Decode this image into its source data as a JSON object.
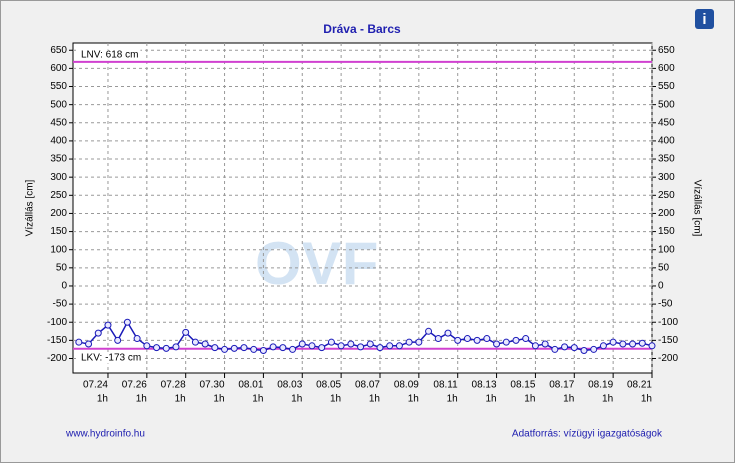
{
  "chart_data": {
    "type": "line",
    "title": "Dráva - Barcs",
    "ylabel": "Vízállás [cm]",
    "y2label": "Vízállás [cm]",
    "x": [
      -1.5,
      -1,
      -0.5,
      0,
      0.5,
      1,
      1.5,
      2,
      2.5,
      3,
      3.5,
      4,
      4.5,
      5,
      5.5,
      6,
      6.5,
      7,
      7.5,
      8,
      8.5,
      9,
      9.5,
      10,
      10.5,
      11,
      11.5,
      12,
      12.5,
      13,
      13.5,
      14,
      14.5,
      15,
      15.5,
      16,
      16.5,
      17,
      17.5,
      18,
      18.5,
      19,
      19.5,
      20,
      20.5,
      21,
      21.5,
      22,
      22.5,
      23,
      23.5,
      24,
      24.5,
      25,
      25.5,
      26,
      26.5,
      27,
      27.5,
      28
    ],
    "values": [
      -155,
      -160,
      -130,
      -108,
      -150,
      -100,
      -145,
      -165,
      -170,
      -172,
      -168,
      -128,
      -155,
      -160,
      -170,
      -175,
      -172,
      -170,
      -175,
      -178,
      -168,
      -170,
      -175,
      -160,
      -165,
      -170,
      -155,
      -165,
      -160,
      -168,
      -160,
      -170,
      -165,
      -165,
      -155,
      -155,
      -125,
      -145,
      -130,
      -150,
      -145,
      -150,
      -145,
      -160,
      -155,
      -150,
      -145,
      -165,
      -160,
      -175,
      -168,
      -170,
      -178,
      -175,
      -165,
      -155,
      -160,
      -160,
      -158,
      -165
    ],
    "color": "#1a1ab8",
    "xlim": [
      -1.8,
      28
    ],
    "xticks": [
      {
        "value": 0,
        "label": "07.24",
        "sublabel": "1h"
      },
      {
        "value": 2,
        "label": "07.26",
        "sublabel": "1h"
      },
      {
        "value": 4,
        "label": "07.28",
        "sublabel": "1h"
      },
      {
        "value": 6,
        "label": "07.30",
        "sublabel": "1h"
      },
      {
        "value": 8,
        "label": "08.01",
        "sublabel": "1h"
      },
      {
        "value": 10,
        "label": "08.03",
        "sublabel": "1h"
      },
      {
        "value": 12,
        "label": "08.05",
        "sublabel": "1h"
      },
      {
        "value": 14,
        "label": "08.07",
        "sublabel": "1h"
      },
      {
        "value": 16,
        "label": "08.09",
        "sublabel": "1h"
      },
      {
        "value": 18,
        "label": "08.11",
        "sublabel": "1h"
      },
      {
        "value": 20,
        "label": "08.13",
        "sublabel": "1h"
      },
      {
        "value": 22,
        "label": "08.15",
        "sublabel": "1h"
      },
      {
        "value": 24,
        "label": "08.17",
        "sublabel": "1h"
      },
      {
        "value": 26,
        "label": "08.19",
        "sublabel": "1h"
      },
      {
        "value": 28,
        "label": "08.21",
        "sublabel": "1h"
      }
    ],
    "ylim": [
      -240,
      670
    ],
    "yticks": [
      -200,
      -150,
      -100,
      -50,
      0,
      50,
      100,
      150,
      200,
      250,
      300,
      350,
      400,
      450,
      500,
      550,
      600,
      650
    ],
    "y2lim": [
      -240,
      670
    ],
    "y2ticks": [
      -200,
      -150,
      -100,
      -50,
      0,
      50,
      100,
      150,
      200,
      250,
      300,
      350,
      400,
      450,
      500,
      550,
      600,
      650
    ],
    "grid": true,
    "reference_lines": [
      {
        "label": "LNV: 618 cm",
        "value": 618,
        "color": "#d040d0"
      },
      {
        "label": "LKV: -173 cm",
        "value": -173,
        "color": "#d040d0"
      }
    ]
  },
  "watermark": "OVF",
  "info_icon": "i",
  "footer_left": "www.hydroinfo.hu",
  "footer_right": "Adatforrás: vízügyi igazgatóságok"
}
